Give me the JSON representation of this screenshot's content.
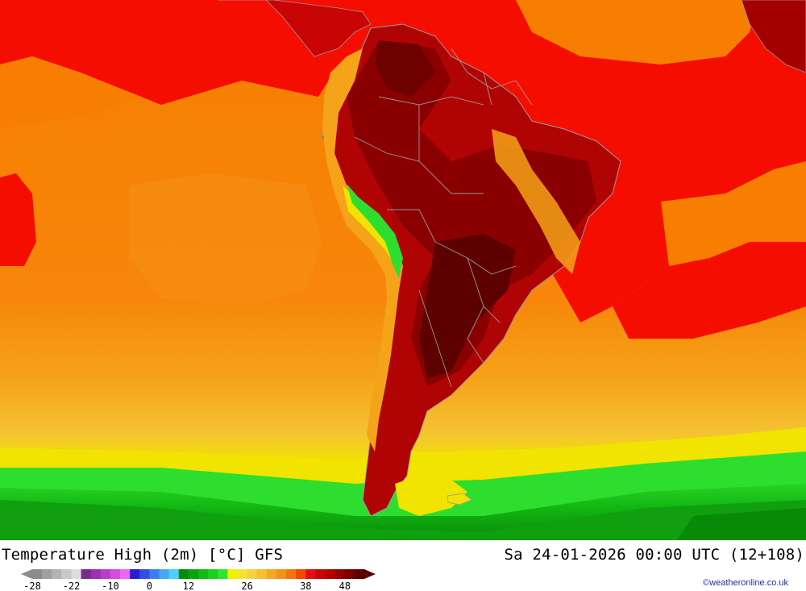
{
  "title": "Temperature High (2m) [°C] GFS",
  "valid_time": "Sa 24-01-2026 00:00 UTC (12+108)",
  "credit": "©weatheronline.co.uk",
  "legend": {
    "colors": [
      "#8c8c8c",
      "#a0a0a0",
      "#b4b4b4",
      "#c8c8c8",
      "#dcdcdc",
      "#7a2a8c",
      "#9b33b0",
      "#bb3ccc",
      "#d84ae0",
      "#ee66f0",
      "#2a1ecf",
      "#2f4fe8",
      "#3c7df2",
      "#46a6f6",
      "#4cd2f8",
      "#068c06",
      "#0ca40c",
      "#12bb12",
      "#1ad01a",
      "#2ee42e",
      "#f0f000",
      "#f5e432",
      "#f5d23c",
      "#f5c034",
      "#f5a828",
      "#f5901c",
      "#f57410",
      "#f04a00",
      "#e01010",
      "#c80404",
      "#b00000",
      "#940000",
      "#7a0000",
      "#5a0000"
    ],
    "ticks": [
      {
        "label": "-28",
        "index": 0
      },
      {
        "label": "-22",
        "index": 4
      },
      {
        "label": "-10",
        "index": 8
      },
      {
        "label": "0",
        "index": 12
      },
      {
        "label": "12",
        "index": 16
      },
      {
        "label": "26",
        "index": 22
      },
      {
        "label": "38",
        "index": 28
      },
      {
        "label": "48",
        "index": 32
      }
    ]
  },
  "map_colors": {
    "ocean_warm": "#f77e00",
    "ocean_hot": "#f50e00",
    "ocean_mid": "#f5a318",
    "ocean_cool": "#f5c232",
    "yellow": "#f0e400",
    "green_light": "#2ede2e",
    "green_mid": "#12b612",
    "green_dark": "#088a08",
    "land_hot": "#b00404",
    "land_hotter": "#8a0000",
    "land_hottest": "#5e0000",
    "borders": "#9a9a9a"
  }
}
